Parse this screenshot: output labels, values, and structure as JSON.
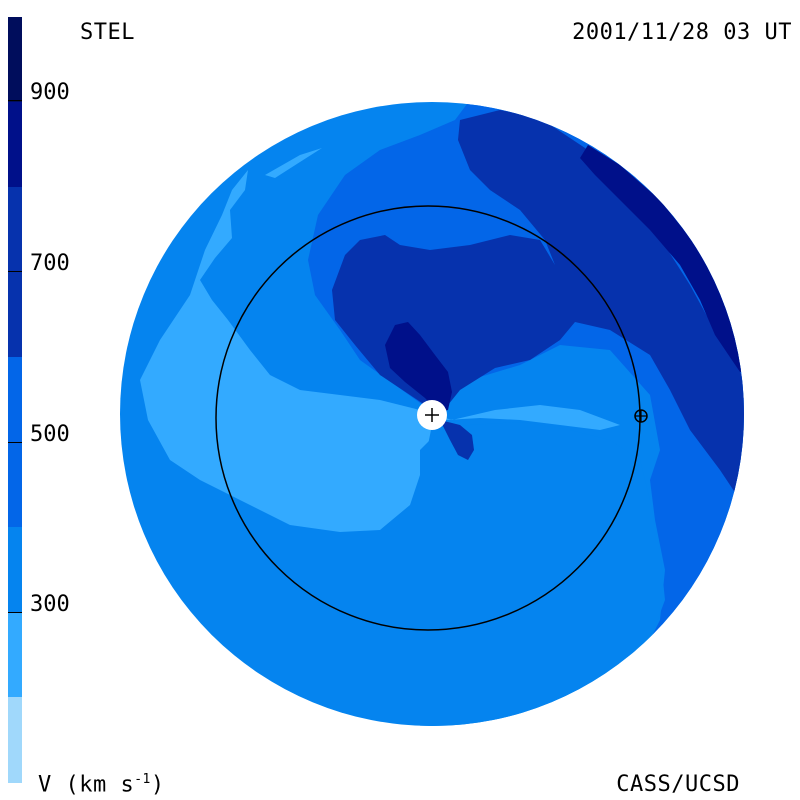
{
  "header": {
    "observatory": "STEL",
    "timestamp": "2001/11/28 03 UT"
  },
  "footer": {
    "credit": "CASS/UCSD",
    "units_label": "V (km s",
    "units_exponent": "-1",
    "units_close": ")"
  },
  "colorbar": {
    "quantity": "solar wind velocity",
    "tick_labels": [
      "900",
      "700",
      "500",
      "300"
    ],
    "colors": [
      "#06122e",
      "#000d5c",
      "#00108a",
      "#0632ad",
      "#0366e8",
      "#0584ef",
      "#33aaff",
      "#a0d8fb"
    ]
  },
  "map": {
    "colors": {
      "level_300_400": "#0584ef",
      "level_200_300": "#33aaff",
      "level_400_500": "#0366e8",
      "level_500_600": "#0632ad",
      "level_600_700": "#00108a",
      "sun": "#ffffff",
      "orbit": "#000000"
    },
    "icons": [
      "sun-icon",
      "earth-icon"
    ]
  }
}
